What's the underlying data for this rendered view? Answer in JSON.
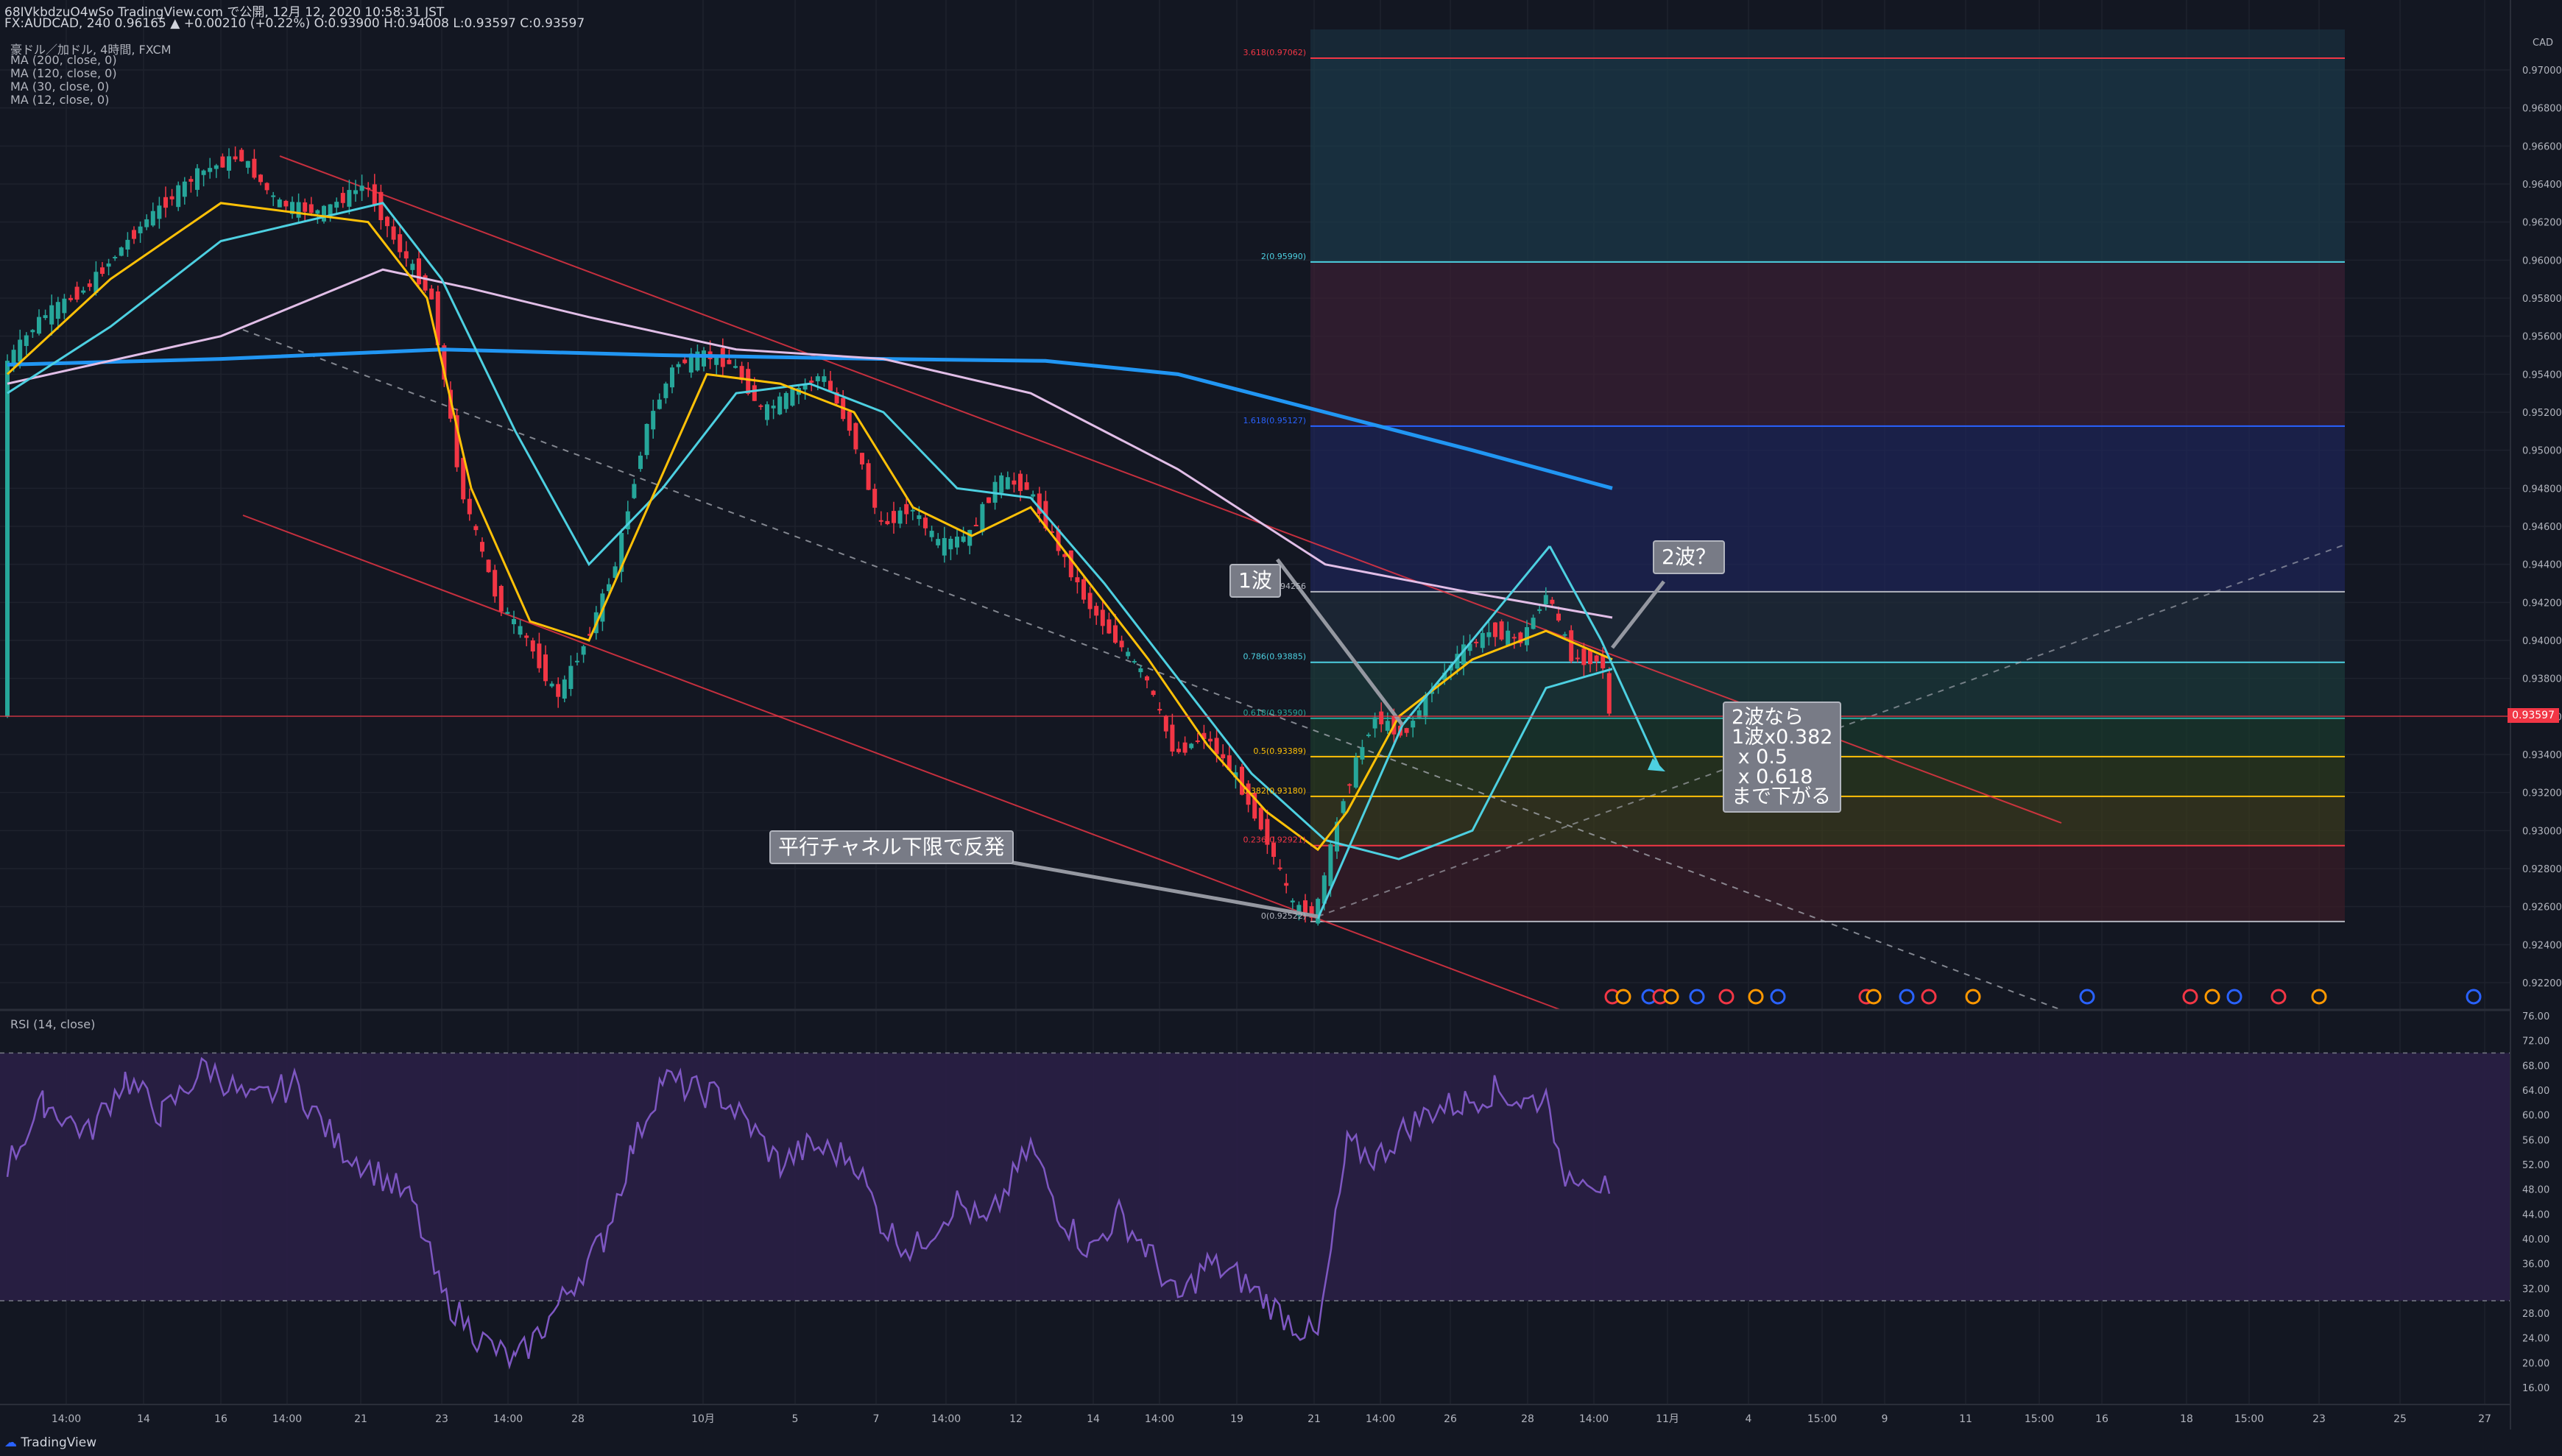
{
  "header": {
    "line1": "68IVkbdzuO4wSo TradingView.com で公開, 12月 12, 2020 10:58:31 JST",
    "line2_symbol": "FX:AUDCAD, 240",
    "line2_quote": "0.96165 ▲ +0.00210 (+0.22%) O:0.93900 H:0.94008 L:0.93597 C:0.93597",
    "pair_name": "豪ドル／加ドル, 4時間, FXCM"
  },
  "indicators": [
    {
      "label": "MA (200, close, 0)",
      "color": "#2196f3"
    },
    {
      "label": "MA (120, close, 0)",
      "color": "#e1bee7"
    },
    {
      "label": "MA (30, close, 0)",
      "color": "#4dd0e1"
    },
    {
      "label": "MA (12, close, 0)",
      "color": "#ffc107"
    }
  ],
  "price_axis": {
    "currency": "CAD",
    "current_price": "0.93597",
    "ticks": [
      "0.97000",
      "0.96800",
      "0.96600",
      "0.96400",
      "0.96200",
      "0.96000",
      "0.95800",
      "0.95600",
      "0.95400",
      "0.95200",
      "0.95000",
      "0.94800",
      "0.94600",
      "0.94400",
      "0.94200",
      "0.94000",
      "0.93800",
      "0.93600",
      "0.93400",
      "0.93200",
      "0.93000",
      "0.92800",
      "0.92600",
      "0.92400",
      "0.92200"
    ]
  },
  "rsi": {
    "label": "RSI (14, close)",
    "ticks": [
      "76.00",
      "72.00",
      "68.00",
      "64.00",
      "60.00",
      "56.00",
      "52.00",
      "48.00",
      "44.00",
      "40.00",
      "36.00",
      "32.00",
      "28.00",
      "24.00",
      "20.00",
      "16.00"
    ]
  },
  "time_axis": [
    "14:00",
    "14",
    "16",
    "14:00",
    "21",
    "23",
    "14:00",
    "28",
    "10月",
    "5",
    "7",
    "14:00",
    "12",
    "14",
    "14:00",
    "19",
    "21",
    "14:00",
    "26",
    "28",
    "14:00",
    "11月",
    "4",
    "15:00",
    "9",
    "11",
    "15:00",
    "16",
    "18",
    "15:00",
    "23",
    "25",
    "27"
  ],
  "fibonacci": [
    {
      "label": "3.618(0.97062)",
      "color": "#f23645"
    },
    {
      "label": "2(0.95990)",
      "color": "#4dd0e1"
    },
    {
      "label": "1.618(0.95127)",
      "color": "#2962ff"
    },
    {
      "label": "0.94256",
      "color": "#b2b5be"
    },
    {
      "label": "0.786(0.93885)",
      "color": "#4dd0e1"
    },
    {
      "label": "0.618(0.93590)",
      "color": "#26a69a"
    },
    {
      "label": "0.5(0.93389)",
      "color": "#ffc107"
    },
    {
      "label": "0.382(0.93180)",
      "color": "#ffc107"
    },
    {
      "label": "0.236(0.92921)",
      "color": "#f23645"
    },
    {
      "label": "0(0.92522)",
      "color": "#b2b5be"
    }
  ],
  "annotations": {
    "wave1": "1波",
    "wave2": "2波？",
    "channel": "平行チャネル下限で反発",
    "target": "2波なら\n1波x0.382\n x 0.5\n x 0.618\nまで下がる"
  },
  "footer": {
    "brand": "TradingView"
  },
  "colors": {
    "up": "#26a69a",
    "down": "#f23645",
    "rsi": "#7e57c2",
    "bg": "#131722"
  }
}
